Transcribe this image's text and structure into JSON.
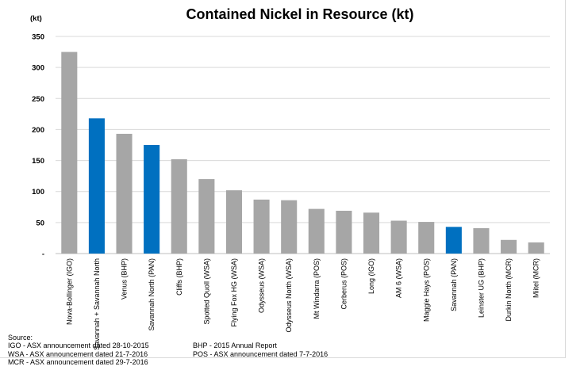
{
  "chart_data": {
    "type": "bar",
    "title": "Contained Nickel in Resource (kt)",
    "unit_label": "(kt)",
    "ylim": [
      0,
      350
    ],
    "yticks": [
      0,
      50,
      100,
      150,
      200,
      250,
      300,
      350
    ],
    "ytick_labels": [
      "-",
      "50",
      "100",
      "150",
      "200",
      "250",
      "300",
      "350"
    ],
    "grid": true,
    "legend": "none",
    "colors": {
      "default": "#a6a6a6",
      "highlight": "#0070c0",
      "grid": "#d9d9d9",
      "axis": "#bfbfbf"
    },
    "categories": [
      "Nova-Bollinger (IGO)",
      "Savannah + Savannah North",
      "Venus (BHP)",
      "Savannah North (PAN)",
      "Cliffs (BHP)",
      "Spotted Quoll (WSA)",
      "Flying Fox HG (WSA)",
      "Odysseus (WSA)",
      "Odysseus North (WSA)",
      "Mt Windarra (POS)",
      "Cerberus (POS)",
      "Long (IGO)",
      "AM 6 (WSA)",
      "Maggie Hays (POS)",
      "Savannah (PAN)",
      "Leinster UG (BHP)",
      "Durkin North (MCR)",
      "Miitel (MCR)"
    ],
    "values": [
      325,
      218,
      193,
      175,
      152,
      120,
      102,
      87,
      86,
      72,
      69,
      66,
      53,
      51,
      43,
      41,
      22,
      18
    ],
    "highlighted": [
      false,
      true,
      false,
      true,
      false,
      false,
      false,
      false,
      false,
      false,
      false,
      false,
      false,
      false,
      true,
      false,
      false,
      false
    ]
  },
  "source": {
    "heading": "Source:",
    "lines": [
      "IGO - ASX announcement dated 28-10-2015",
      "BHP - 2015 Annual Report",
      "WSA - ASX announcement dated 21-7-2016",
      "POS - ASX announcement dated 7-7-2016",
      "MCR - ASX announcement dated 29-7-2016"
    ]
  }
}
